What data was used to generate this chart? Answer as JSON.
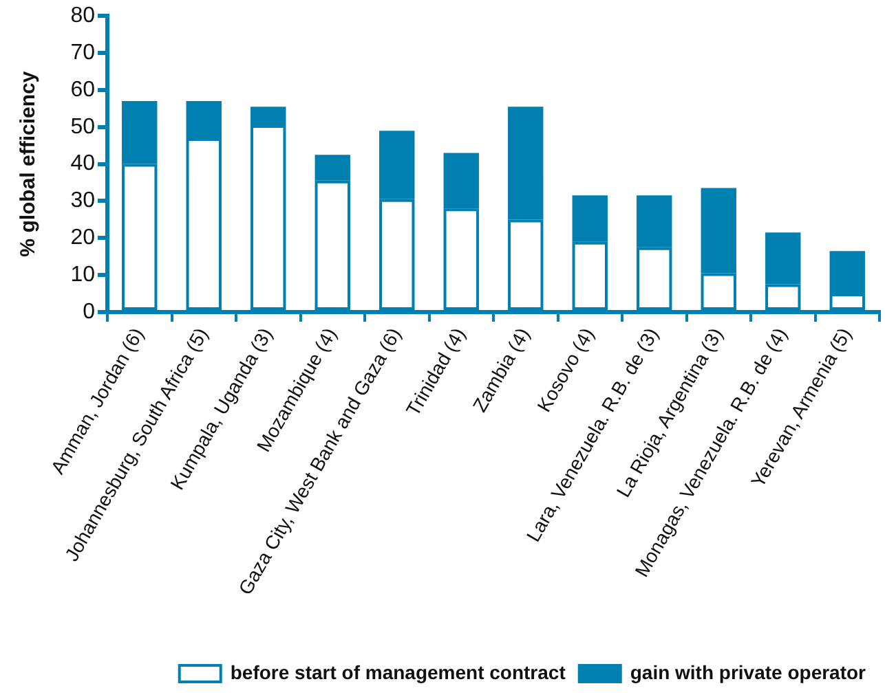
{
  "chart_data": {
    "type": "bar",
    "ylabel": "% global efficiency",
    "categories": [
      "Amman, Jordan (6)",
      "Johannesburg, South Africa (5)",
      "Kumpala, Uganda (3)",
      "Mozambique (4)",
      "Gaza City, West Bank and Gaza (6)",
      "Trinidad (4)",
      "Zambia (4)",
      "Kosovo (4)",
      "Lara, Venezuela. R.B. de (3)",
      "La Rioja, Argentina (3)",
      "Monagas, Venezuela. R.B. de (4)",
      "Yerevan, Armenia (5)"
    ],
    "series": [
      {
        "name": "before start of management contract",
        "color": "#ffffff",
        "values": [
          40,
          47,
          50.5,
          35.5,
          30.5,
          28,
          25,
          19,
          17.5,
          10.5,
          7.5,
          5
        ]
      },
      {
        "name": "gain with private operator",
        "color": "#0080b0",
        "values": [
          17,
          10,
          5,
          7,
          18.5,
          15,
          30.5,
          12.5,
          14,
          23,
          14,
          11.5
        ]
      }
    ],
    "stacked": true,
    "ylim": [
      0,
      80
    ],
    "yticks": [
      0,
      10,
      20,
      30,
      40,
      50,
      60,
      70,
      80
    ],
    "legend": "bottom right"
  }
}
